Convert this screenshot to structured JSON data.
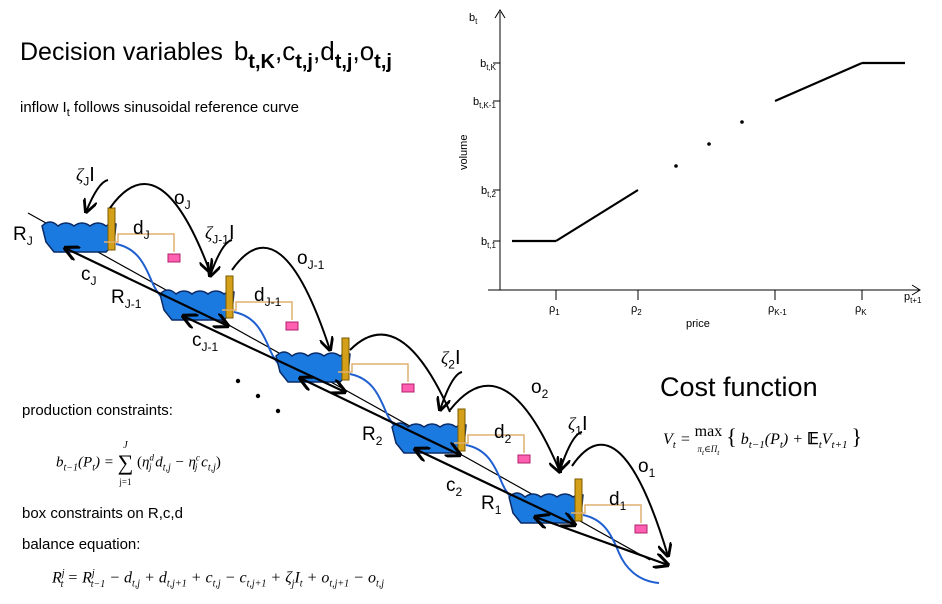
{
  "header": {
    "title": "Decision variables",
    "vars": [
      "b",
      "t,K",
      ",",
      "c",
      "t,j",
      ",",
      "d",
      "t,j",
      ",",
      "o",
      "t,j"
    ],
    "inflow_text": [
      "inflow I",
      "t",
      " follows sinusoidal reference curve"
    ]
  },
  "chart_data": {
    "type": "line",
    "title": "",
    "xlabel": "price",
    "ylabel": "volume",
    "x_axis_name": [
      "p",
      "t+1"
    ],
    "y_axis_name": [
      "b",
      "t"
    ],
    "x_ticks": [
      [
        "ρ",
        "1"
      ],
      [
        "ρ",
        "2"
      ],
      [
        "ρ",
        "K-1"
      ],
      [
        "ρ",
        "K"
      ]
    ],
    "y_ticks": [
      [
        "b",
        "t,1"
      ],
      [
        "b",
        "t,2"
      ],
      [
        "b",
        "t,K-1"
      ],
      [
        "b",
        "t,K"
      ]
    ],
    "segments_note": "step-wise increasing piecewise-linear bid curve",
    "points": [
      {
        "x": "0",
        "y": "b_t,1"
      },
      {
        "x": "ρ_1",
        "y": "b_t,1"
      },
      {
        "x": "ρ_2",
        "y": "b_t,2"
      },
      {
        "x": "ρ_K-1",
        "y": "b_t,K-1"
      },
      {
        "x": "ρ_K",
        "y": "b_t,K"
      },
      {
        "x": "max",
        "y": "b_t,K"
      }
    ]
  },
  "labels": {
    "zetaJ": [
      "ζ",
      "J",
      "I"
    ],
    "oJ": [
      "o",
      "J"
    ],
    "RJ": [
      "R",
      "J"
    ],
    "dJ": [
      "d",
      "J"
    ],
    "cJ": [
      "c",
      "J"
    ],
    "zetaJ1": [
      "ζ",
      "J-1",
      "I"
    ],
    "oJ1": [
      "o",
      "J-1"
    ],
    "RJ1": [
      "R",
      "J-1"
    ],
    "dJ1": [
      "d",
      "J-1"
    ],
    "cJ1": [
      "c",
      "J-1"
    ],
    "zeta2": [
      "ζ",
      "2",
      "I"
    ],
    "o2": [
      "o",
      "2"
    ],
    "R2": [
      "R",
      "2"
    ],
    "d2": [
      "d",
      "2"
    ],
    "c2": [
      "c",
      "2"
    ],
    "zeta1": [
      "ζ",
      "1",
      "I"
    ],
    "o1": [
      "o",
      "1"
    ],
    "R1": [
      "R",
      "1"
    ],
    "d1": [
      "d",
      "1"
    ]
  },
  "cost": {
    "title": "Cost function",
    "formula": "V_t = max_{π_t ∈ Π_t} { b_{t−1}(P_t) + E_t V_{t+1} }"
  },
  "constraints": {
    "production_title": "production constraints:",
    "production_formula": "b_{t−1}(P_t) = Σ_{j=1}^{J} (η_j^d d_{t,j} − η_j^c c_{t,j})",
    "box": "box constraints on R,c,d",
    "balance_title": "balance equation:",
    "balance_formula": "R_t^j = R_{t−1}^j − d_{t,j} + d_{t,j+1} + c_{t,j} − c_{t,j+1} + ζ_j I_t + o_{t,j+1} − o_{t,j}"
  }
}
